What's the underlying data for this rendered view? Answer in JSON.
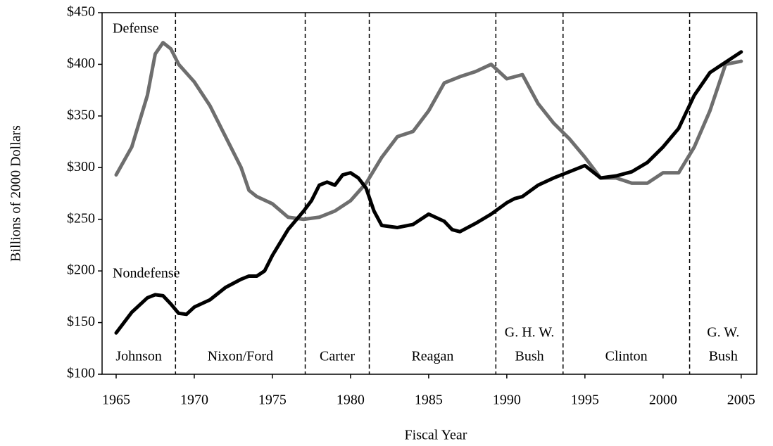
{
  "chart_data": {
    "type": "line",
    "xlabel": "Fiscal Year",
    "ylabel": "Billions of 2000 Dollars",
    "xlim": [
      1964.1,
      2006
    ],
    "xticks": [
      1965,
      1970,
      1975,
      1980,
      1985,
      1990,
      1995,
      2000,
      2005
    ],
    "ylim": [
      100,
      450
    ],
    "yticks": [
      {
        "value": 100,
        "label": "$100"
      },
      {
        "value": 150,
        "label": "$150"
      },
      {
        "value": 200,
        "label": "$200"
      },
      {
        "value": 250,
        "label": "$250"
      },
      {
        "value": 300,
        "label": "$300"
      },
      {
        "value": 350,
        "label": "$350"
      },
      {
        "value": 400,
        "label": "$400"
      },
      {
        "value": 450,
        "label": "$450"
      }
    ],
    "dividers": [
      1968.8,
      1977.1,
      1981.2,
      1989.3,
      1993.6,
      2001.7
    ],
    "presidents": [
      {
        "label": [
          "Johnson"
        ]
      },
      {
        "label": [
          "Nixon/Ford"
        ]
      },
      {
        "label": [
          "Carter"
        ]
      },
      {
        "label": [
          "Reagan"
        ]
      },
      {
        "label": [
          "G. H. W.",
          "Bush"
        ]
      },
      {
        "label": [
          "Clinton"
        ]
      },
      {
        "label": [
          "G. W.",
          "Bush"
        ]
      }
    ],
    "series": [
      {
        "name": "Defense",
        "color": "#6e6e6e",
        "x": [
          1965,
          1966,
          1967,
          1967.5,
          1968,
          1968.5,
          1969,
          1970,
          1971,
          1972,
          1973,
          1973.5,
          1974,
          1975,
          1976,
          1977,
          1978,
          1979,
          1980,
          1981,
          1982,
          1983,
          1984,
          1985,
          1986,
          1987,
          1988,
          1989,
          1990,
          1991,
          1992,
          1993,
          1994,
          1995,
          1996,
          1997,
          1998,
          1999,
          2000,
          2001,
          2002,
          2003,
          2004,
          2005
        ],
        "values": [
          293,
          320,
          370,
          410,
          421,
          415,
          400,
          383,
          360,
          330,
          300,
          278,
          272,
          265,
          252,
          250,
          252,
          258,
          268,
          285,
          310,
          330,
          335,
          355,
          382,
          388,
          393,
          400,
          386,
          390,
          362,
          343,
          328,
          310,
          290,
          290,
          285,
          285,
          295,
          295,
          320,
          355,
          400,
          403
        ]
      },
      {
        "name": "Nondefense",
        "color": "#000000",
        "x": [
          1965,
          1966,
          1967,
          1967.5,
          1968,
          1968.5,
          1969,
          1969.5,
          1970,
          1971,
          1972,
          1973,
          1973.5,
          1974,
          1974.5,
          1975,
          1976,
          1977,
          1977.5,
          1978,
          1978.5,
          1979,
          1979.5,
          1980,
          1980.5,
          1981,
          1981.5,
          1982,
          1983,
          1984,
          1985,
          1986,
          1986.5,
          1987,
          1988,
          1989,
          1990,
          1990.5,
          1991,
          1992,
          1993,
          1994,
          1995,
          1996,
          1997,
          1998,
          1999,
          2000,
          2001,
          2002,
          2003,
          2004,
          2005
        ],
        "values": [
          140,
          160,
          174,
          177,
          176,
          168,
          159,
          158,
          165,
          172,
          184,
          192,
          195,
          195,
          200,
          215,
          240,
          258,
          268,
          283,
          286,
          283,
          293,
          295,
          290,
          280,
          258,
          244,
          242,
          245,
          255,
          248,
          240,
          238,
          246,
          255,
          266,
          270,
          272,
          283,
          290,
          296,
          302,
          290,
          292,
          296,
          305,
          320,
          338,
          370,
          392,
          402,
          412
        ]
      }
    ]
  }
}
